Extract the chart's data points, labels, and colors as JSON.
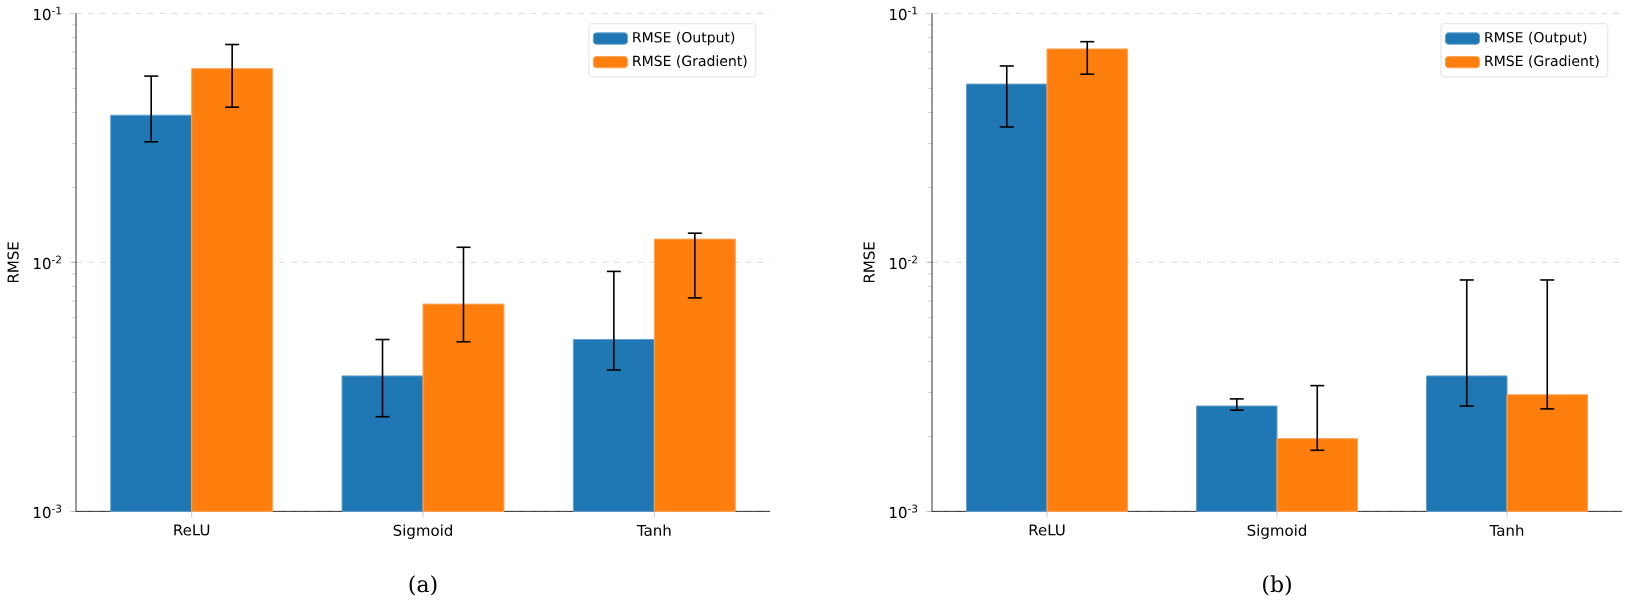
{
  "chart_data": [
    {
      "type": "bar",
      "ylabel": "RMSE",
      "categories": [
        "ReLU",
        "Sigmoid",
        "Tanh"
      ],
      "log": "y",
      "grid": "y",
      "legend": "top right",
      "ylim": [
        0.001,
        0.1
      ],
      "yticks": [
        {
          "value": 0.001,
          "label": "10$^{-3}$"
        },
        {
          "value": 0.01,
          "label": "10$^{-2}$"
        },
        {
          "value": 0.1,
          "label": "10$^{-1}$"
        }
      ],
      "series": [
        {
          "name": "RMSE (Output)",
          "color": "#1f77b4",
          "values": [
            0.039,
            0.0035,
            0.0049
          ],
          "errors": [
            [
              0.0305,
              0.056
            ],
            [
              0.0024,
              0.0049
            ],
            [
              0.0037,
              0.0092
            ]
          ]
        },
        {
          "name": "RMSE (Gradient)",
          "color": "#ff7f0e",
          "values": [
            0.06,
            0.0068,
            0.0124
          ],
          "errors": [
            [
              0.042,
              0.075
            ],
            [
              0.0048,
              0.0115
            ],
            [
              0.0072,
              0.0131
            ]
          ]
        }
      ],
      "annotations": [
        "(a)"
      ]
    },
    {
      "type": "bar",
      "ylabel": "RMSE",
      "categories": [
        "ReLU",
        "Sigmoid",
        "Tanh"
      ],
      "log": "y",
      "grid": "y",
      "legend": "top right",
      "ylim": [
        0.001,
        0.1
      ],
      "yticks": [
        {
          "value": 0.001,
          "label": "10$^{-3}$"
        },
        {
          "value": 0.01,
          "label": "10$^{-2}$"
        },
        {
          "value": 0.1,
          "label": "10$^{-1}$"
        }
      ],
      "series": [
        {
          "name": "RMSE (Output)",
          "color": "#1f77b4",
          "values": [
            0.052,
            0.00265,
            0.0035
          ],
          "errors": [
            [
              0.035,
              0.0615
            ],
            [
              0.00255,
              0.00283
            ],
            [
              0.00265,
              0.0085
            ]
          ]
        },
        {
          "name": "RMSE (Gradient)",
          "color": "#ff7f0e",
          "values": [
            0.072,
            0.00196,
            0.00294
          ],
          "errors": [
            [
              0.057,
              0.077
            ],
            [
              0.00176,
              0.0032
            ],
            [
              0.00258,
              0.0085
            ]
          ]
        }
      ],
      "annotations": [
        "(b)"
      ]
    }
  ]
}
